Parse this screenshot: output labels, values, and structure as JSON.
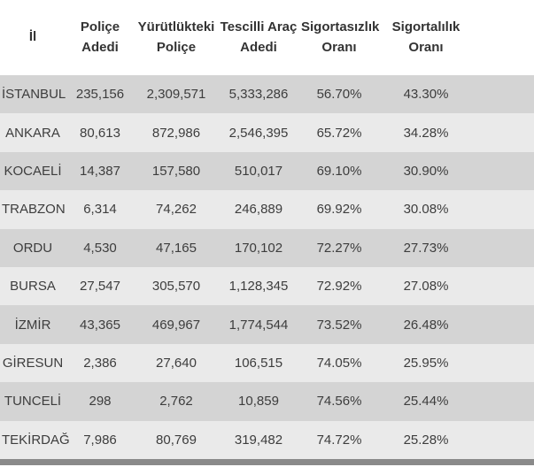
{
  "chart_data": {
    "type": "table",
    "columns": [
      "İl",
      "Poliçe Adedi",
      "Yürütlükteki Poliçe",
      "Tescilli Araç Adedi",
      "Sigortasızlık Oranı",
      "Sigortalılık Oranı"
    ],
    "rows": [
      [
        "İSTANBUL",
        "235,156",
        "2,309,571",
        "5,333,286",
        "56.70%",
        "43.30%"
      ],
      [
        "ANKARA",
        "80,613",
        "872,986",
        "2,546,395",
        "65.72%",
        "34.28%"
      ],
      [
        "KOCAELİ",
        "14,387",
        "157,580",
        "510,017",
        "69.10%",
        "30.90%"
      ],
      [
        "TRABZON",
        "6,314",
        "74,262",
        "246,889",
        "69.92%",
        "30.08%"
      ],
      [
        "ORDU",
        "4,530",
        "47,165",
        "170,102",
        "72.27%",
        "27.73%"
      ],
      [
        "BURSA",
        "27,547",
        "305,570",
        "1,128,345",
        "72.92%",
        "27.08%"
      ],
      [
        "İZMİR",
        "43,365",
        "469,967",
        "1,774,544",
        "73.52%",
        "26.48%"
      ],
      [
        "GİRESUN",
        "2,386",
        "27,640",
        "106,515",
        "74.05%",
        "25.95%"
      ],
      [
        "TUNCELİ",
        "298",
        "2,762",
        "10,859",
        "74.56%",
        "25.44%"
      ],
      [
        "TEKİRDAĞ",
        "7,986",
        "80,769",
        "319,482",
        "74.72%",
        "25.28%"
      ]
    ],
    "title": "",
    "legend": "none",
    "grid": "off",
    "notes": "striped data table, all cells center-aligned, partially visible dark row strip at bottom edge"
  },
  "colors": {
    "header_bg": "#ffffff",
    "header_text": "#333333",
    "text": "#3d3d3d",
    "row_odd_bg": "#d4d4d4",
    "row_even_bg": "#eaeaea",
    "footer_strip": "#8a8a8a"
  }
}
